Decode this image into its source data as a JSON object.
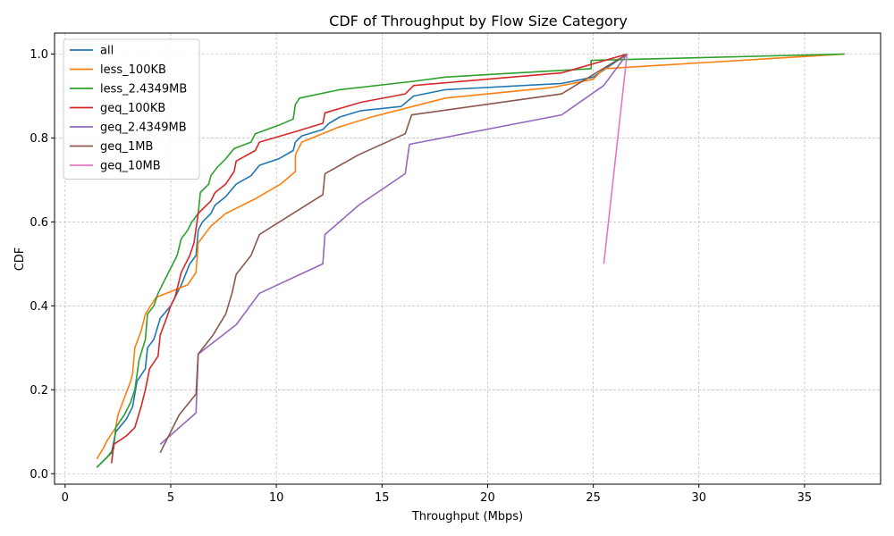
{
  "chart_data": {
    "type": "line",
    "title": "CDF of Throughput by Flow Size Category",
    "xlabel": "Throughput (Mbps)",
    "ylabel": "CDF",
    "xlim": [
      -0.5,
      38.6
    ],
    "ylim": [
      -0.025,
      1.05
    ],
    "xticks": [
      0,
      5,
      10,
      15,
      20,
      25,
      30,
      35
    ],
    "yticks": [
      0.0,
      0.2,
      0.4,
      0.6,
      0.8,
      1.0
    ],
    "grid": true,
    "legend_position": "top-left",
    "series": [
      {
        "name": "all",
        "color": "#1f77b4",
        "points": [
          [
            1.5,
            0.015
          ],
          [
            2.2,
            0.05
          ],
          [
            2.4,
            0.1
          ],
          [
            2.9,
            0.13
          ],
          [
            3.2,
            0.16
          ],
          [
            3.4,
            0.22
          ],
          [
            3.8,
            0.25
          ],
          [
            3.9,
            0.3
          ],
          [
            4.2,
            0.32
          ],
          [
            4.5,
            0.37
          ],
          [
            5.0,
            0.4
          ],
          [
            5.5,
            0.45
          ],
          [
            5.9,
            0.5
          ],
          [
            6.2,
            0.52
          ],
          [
            6.3,
            0.58
          ],
          [
            6.5,
            0.6
          ],
          [
            6.9,
            0.62
          ],
          [
            7.1,
            0.64
          ],
          [
            7.6,
            0.66
          ],
          [
            8.1,
            0.69
          ],
          [
            8.8,
            0.71
          ],
          [
            9.2,
            0.735
          ],
          [
            10.1,
            0.75
          ],
          [
            10.8,
            0.77
          ],
          [
            10.9,
            0.79
          ],
          [
            11.2,
            0.805
          ],
          [
            12.2,
            0.82
          ],
          [
            12.5,
            0.835
          ],
          [
            13.0,
            0.85
          ],
          [
            14.0,
            0.865
          ],
          [
            15.9,
            0.875
          ],
          [
            16.5,
            0.9
          ],
          [
            18.0,
            0.915
          ],
          [
            23.5,
            0.93
          ],
          [
            25.0,
            0.945
          ],
          [
            26.6,
            1.0
          ]
        ]
      },
      {
        "name": "less_100KB",
        "color": "#ff7f0e",
        "points": [
          [
            1.5,
            0.035
          ],
          [
            1.8,
            0.06
          ],
          [
            2.0,
            0.08
          ],
          [
            2.4,
            0.11
          ],
          [
            2.5,
            0.14
          ],
          [
            2.8,
            0.18
          ],
          [
            3.1,
            0.22
          ],
          [
            3.2,
            0.24
          ],
          [
            3.3,
            0.3
          ],
          [
            3.6,
            0.34
          ],
          [
            3.8,
            0.38
          ],
          [
            4.3,
            0.42
          ],
          [
            5.8,
            0.45
          ],
          [
            6.2,
            0.48
          ],
          [
            6.3,
            0.55
          ],
          [
            6.9,
            0.59
          ],
          [
            7.6,
            0.62
          ],
          [
            9.0,
            0.655
          ],
          [
            10.2,
            0.69
          ],
          [
            10.9,
            0.72
          ],
          [
            10.9,
            0.76
          ],
          [
            11.2,
            0.79
          ],
          [
            12.9,
            0.825
          ],
          [
            14.5,
            0.85
          ],
          [
            18.0,
            0.895
          ],
          [
            23.0,
            0.92
          ],
          [
            25.0,
            0.94
          ],
          [
            25.5,
            0.965
          ],
          [
            36.9,
            1.0
          ]
        ]
      },
      {
        "name": "less_2.4349MB",
        "color": "#2ca02c",
        "points": [
          [
            1.5,
            0.015
          ],
          [
            2.0,
            0.04
          ],
          [
            2.3,
            0.06
          ],
          [
            2.4,
            0.11
          ],
          [
            2.8,
            0.14
          ],
          [
            3.1,
            0.17
          ],
          [
            3.3,
            0.2
          ],
          [
            3.5,
            0.27
          ],
          [
            3.8,
            0.32
          ],
          [
            3.9,
            0.38
          ],
          [
            4.2,
            0.4
          ],
          [
            4.4,
            0.43
          ],
          [
            4.8,
            0.47
          ],
          [
            5.0,
            0.49
          ],
          [
            5.3,
            0.52
          ],
          [
            5.5,
            0.56
          ],
          [
            5.8,
            0.58
          ],
          [
            6.0,
            0.6
          ],
          [
            6.3,
            0.62
          ],
          [
            6.4,
            0.67
          ],
          [
            6.8,
            0.69
          ],
          [
            6.9,
            0.71
          ],
          [
            7.2,
            0.73
          ],
          [
            7.6,
            0.75
          ],
          [
            8.0,
            0.775
          ],
          [
            8.8,
            0.79
          ],
          [
            9.0,
            0.81
          ],
          [
            10.1,
            0.83
          ],
          [
            10.8,
            0.845
          ],
          [
            10.9,
            0.88
          ],
          [
            11.1,
            0.895
          ],
          [
            13.0,
            0.915
          ],
          [
            16.5,
            0.935
          ],
          [
            18.0,
            0.945
          ],
          [
            24.9,
            0.965
          ],
          [
            24.9,
            0.985
          ],
          [
            26.6,
            0.987
          ],
          [
            36.9,
            1.0
          ]
        ]
      },
      {
        "name": "geq_100KB",
        "color": "#d62728",
        "points": [
          [
            2.2,
            0.025
          ],
          [
            2.3,
            0.07
          ],
          [
            2.9,
            0.09
          ],
          [
            3.3,
            0.11
          ],
          [
            3.6,
            0.16
          ],
          [
            3.8,
            0.2
          ],
          [
            4.0,
            0.25
          ],
          [
            4.4,
            0.28
          ],
          [
            4.5,
            0.33
          ],
          [
            4.8,
            0.37
          ],
          [
            5.0,
            0.4
          ],
          [
            5.2,
            0.42
          ],
          [
            5.5,
            0.48
          ],
          [
            5.9,
            0.52
          ],
          [
            6.1,
            0.55
          ],
          [
            6.3,
            0.62
          ],
          [
            6.9,
            0.65
          ],
          [
            7.1,
            0.67
          ],
          [
            7.6,
            0.69
          ],
          [
            8.0,
            0.72
          ],
          [
            8.1,
            0.745
          ],
          [
            9.0,
            0.77
          ],
          [
            9.2,
            0.79
          ],
          [
            10.9,
            0.815
          ],
          [
            12.2,
            0.835
          ],
          [
            12.3,
            0.86
          ],
          [
            14.0,
            0.885
          ],
          [
            16.1,
            0.905
          ],
          [
            16.5,
            0.925
          ],
          [
            23.5,
            0.955
          ],
          [
            26.6,
            1.0
          ]
        ]
      },
      {
        "name": "geq_2.4349MB",
        "color": "#9467bd",
        "points": [
          [
            4.5,
            0.07
          ],
          [
            6.2,
            0.145
          ],
          [
            6.3,
            0.285
          ],
          [
            8.1,
            0.355
          ],
          [
            9.2,
            0.43
          ],
          [
            12.2,
            0.5
          ],
          [
            12.3,
            0.57
          ],
          [
            13.9,
            0.64
          ],
          [
            16.1,
            0.715
          ],
          [
            16.3,
            0.785
          ],
          [
            23.5,
            0.855
          ],
          [
            25.5,
            0.925
          ],
          [
            26.6,
            1.0
          ]
        ]
      },
      {
        "name": "geq_1MB",
        "color": "#8c564b",
        "points": [
          [
            4.5,
            0.05
          ],
          [
            5.4,
            0.14
          ],
          [
            6.2,
            0.19
          ],
          [
            6.3,
            0.285
          ],
          [
            7.0,
            0.33
          ],
          [
            7.6,
            0.38
          ],
          [
            7.9,
            0.43
          ],
          [
            8.1,
            0.475
          ],
          [
            8.8,
            0.52
          ],
          [
            9.2,
            0.57
          ],
          [
            12.2,
            0.665
          ],
          [
            12.3,
            0.715
          ],
          [
            13.9,
            0.76
          ],
          [
            16.1,
            0.81
          ],
          [
            16.4,
            0.855
          ],
          [
            23.5,
            0.905
          ],
          [
            26.6,
            1.0
          ]
        ]
      },
      {
        "name": "geq_10MB",
        "color": "#e377c2",
        "points": [
          [
            25.5,
            0.5
          ],
          [
            26.6,
            1.0
          ]
        ]
      }
    ]
  }
}
